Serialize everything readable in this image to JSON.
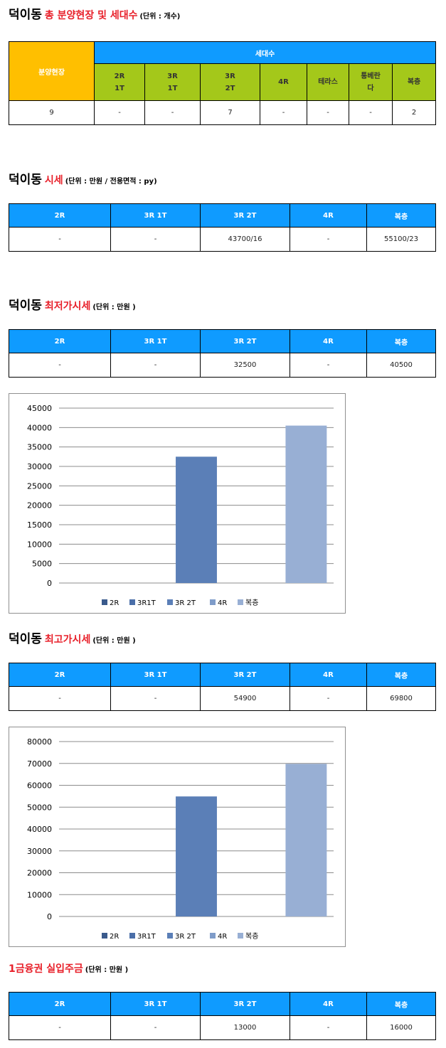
{
  "sections": {
    "supply": {
      "main": "덕이동",
      "red": "총 분양현장 및 세대수",
      "unit": "(단위 : 개수)",
      "site_header": "분양현장",
      "group_header": "세대수",
      "sub_headers": [
        [
          "2R",
          "1T"
        ],
        [
          "3R",
          "1T"
        ],
        [
          "3R",
          "2T"
        ],
        [
          "4R"
        ],
        [
          "테라스"
        ],
        [
          "통베란",
          "다"
        ],
        [
          "복층"
        ]
      ],
      "row": [
        "9",
        "-",
        "-",
        "7",
        "-",
        "-",
        "-",
        "2"
      ]
    },
    "market": {
      "main": "덕이동",
      "red": "시세",
      "unit": "(단위 : 만원 / 전용면적 : py)",
      "headers": [
        "2R",
        "3R 1T",
        "3R 2T",
        "4R",
        "복층"
      ],
      "row": [
        "-",
        "-",
        "43700/16",
        "-",
        "55100/23"
      ]
    },
    "lowest": {
      "main": "덕이동",
      "red": "최저가시세",
      "unit": "(단위 : 만원 )",
      "headers": [
        "2R",
        "3R 1T",
        "3R 2T",
        "4R",
        "복층"
      ],
      "row": [
        "-",
        "-",
        "32500",
        "-",
        "40500"
      ]
    },
    "highest": {
      "main": "덕이동",
      "red": "최고가시세",
      "unit": "(단위 : 만원 )",
      "headers": [
        "2R",
        "3R 1T",
        "3R 2T",
        "4R",
        "복층"
      ],
      "row": [
        "-",
        "-",
        "54900",
        "-",
        "69800"
      ]
    },
    "deposit": {
      "main": "",
      "red": "1금융권 실입주금",
      "unit": "(단위 : 만원 )",
      "headers": [
        "2R",
        "3R 1T",
        "3R 2T",
        "4R",
        "복층"
      ],
      "row": [
        "-",
        "-",
        "13000",
        "-",
        "16000"
      ]
    }
  },
  "chart_data": [
    {
      "type": "bar",
      "categories": [
        "2R",
        "3R1T",
        "3R 2T",
        "4R",
        "복층"
      ],
      "values": [
        null,
        null,
        32500,
        null,
        40500
      ],
      "colors": [
        "#3a5a8c",
        "#4a6ea8",
        "#5b7fb7",
        "#7f9cc9",
        "#98afd4"
      ],
      "ylim": [
        0,
        45000
      ],
      "yticks": [
        0,
        5000,
        10000,
        15000,
        20000,
        25000,
        30000,
        35000,
        40000,
        45000
      ],
      "grid": true,
      "legend": "bottom"
    },
    {
      "type": "bar",
      "categories": [
        "2R",
        "3R1T",
        "3R 2T",
        "4R",
        "복층"
      ],
      "values": [
        null,
        null,
        54900,
        null,
        69800
      ],
      "colors": [
        "#3a5a8c",
        "#4a6ea8",
        "#5b7fb7",
        "#7f9cc9",
        "#98afd4"
      ],
      "ylim": [
        0,
        80000
      ],
      "yticks": [
        0,
        10000,
        20000,
        30000,
        40000,
        50000,
        60000,
        70000,
        80000
      ],
      "grid": true,
      "legend": "bottom"
    }
  ]
}
